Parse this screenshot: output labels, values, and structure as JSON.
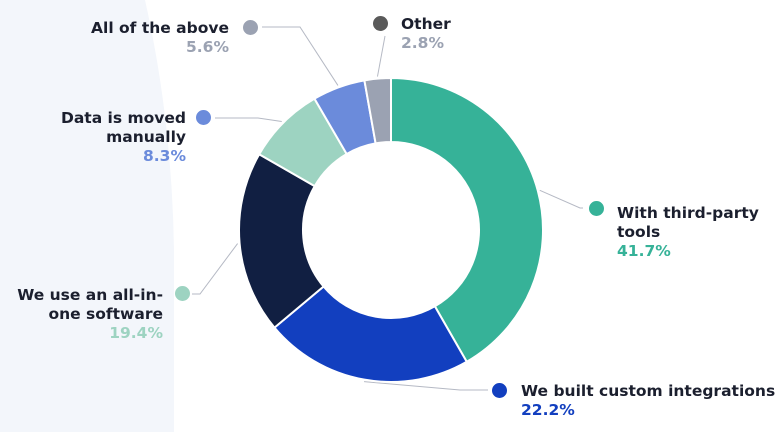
{
  "chart_data": {
    "type": "pie",
    "title": "",
    "categories": [
      "With third-party tools",
      "We built custom integrations",
      "We use an all-in-one software",
      "Data is moved manually",
      "All of the above",
      "Other"
    ],
    "values": [
      41.7,
      22.2,
      19.4,
      8.3,
      5.6,
      2.8
    ],
    "value_labels": [
      "41.7%",
      "22.2%",
      "19.4%",
      "8.3%",
      "5.6%",
      "2.8%"
    ],
    "colors": [
      "#36b298",
      "#123fbf",
      "#111f42",
      "#9dd3c1",
      "#6b8bdb",
      "#9ba2b2"
    ],
    "percent_colors": [
      "#36b298",
      "#123fbf",
      "#9dd3c1",
      "#6b8bdb",
      "#9ba2b2",
      "#9ba2b2"
    ],
    "legend_dot_colors": [
      "#36b298",
      "#123fbf",
      "#9dd3c1",
      "#6b8bdb",
      "#9ba2b2",
      "#5a5a5a"
    ],
    "legend": "none",
    "style": "donut"
  },
  "labels": [
    {
      "name": "With third-party\ntools",
      "pct": "41.7%"
    },
    {
      "name": "We built custom integrations",
      "pct": "22.2%"
    },
    {
      "name": "We use an all-in-\none software",
      "pct": "19.4%"
    },
    {
      "name": "Data is moved\nmanually",
      "pct": "8.3%"
    },
    {
      "name": "All of the above",
      "pct": "5.6%"
    },
    {
      "name": "Other",
      "pct": "2.8%"
    }
  ]
}
